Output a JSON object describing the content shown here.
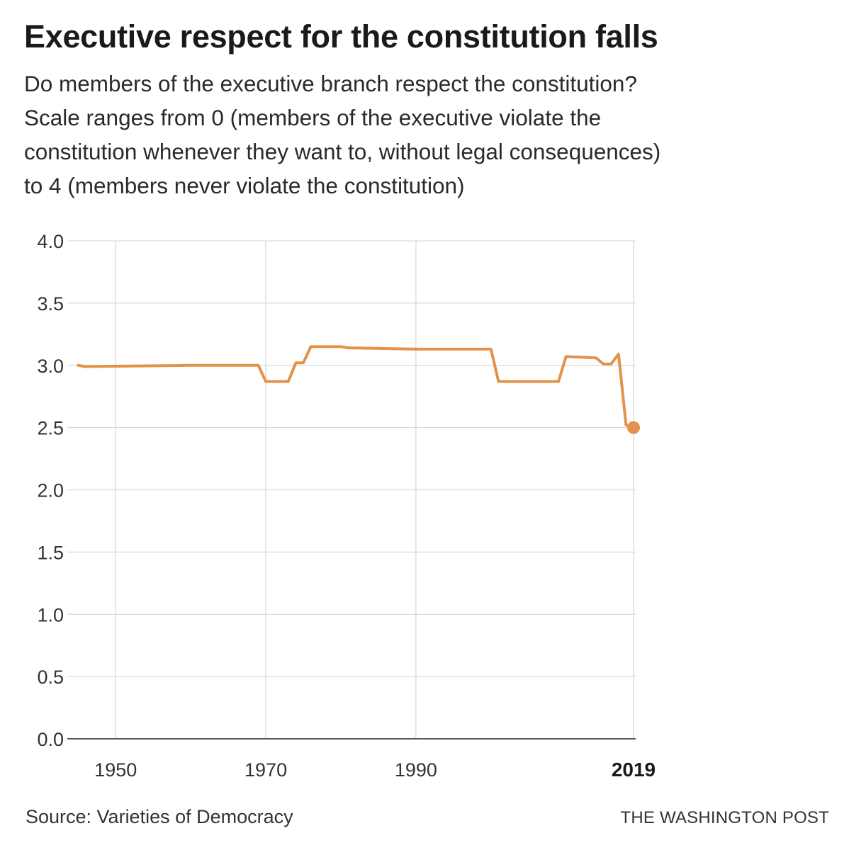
{
  "title": "Executive respect for the constitution falls",
  "subtitle_lines": [
    "Do members of the executive branch respect the constitution?",
    "Scale ranges from 0 (members of the executive violate the",
    "constitution whenever they want to, without legal consequences)",
    "to 4 (members never violate the constitution)"
  ],
  "source": "Source: Varieties of Democracy",
  "credit": "THE WASHINGTON POST",
  "colors": {
    "line": "#e2924b",
    "grid": "#d9d9d9",
    "axis": "#555555"
  },
  "chart_data": {
    "type": "line",
    "title": "Executive respect for the constitution falls",
    "xlabel": "",
    "ylabel": "",
    "xlim": [
      1944.5,
      2019
    ],
    "ylim": [
      0,
      4
    ],
    "yticks": [
      0,
      0.5,
      1.0,
      1.5,
      2.0,
      2.5,
      3.0,
      3.5,
      4.0
    ],
    "ytick_labels": [
      "0.0",
      "0.5",
      "1.0",
      "1.5",
      "2.0",
      "2.5",
      "3.0",
      "3.5",
      "4.0"
    ],
    "xticks": [
      1950,
      1970,
      1990,
      2019
    ],
    "xtick_labels": [
      "1950",
      "1970",
      "1990",
      "2019"
    ],
    "highlight_tick": "2019",
    "series": [
      {
        "name": "Executive respect for the constitution",
        "x": [
          1945,
          1946,
          1960,
          1969,
          1970,
          1973,
          1974,
          1975,
          1976,
          1980,
          1981,
          1990,
          2000,
          2001,
          2009,
          2010,
          2014,
          2015,
          2016,
          2017,
          2018,
          2019
        ],
        "y": [
          3.0,
          2.99,
          3.0,
          3.0,
          2.87,
          2.87,
          3.02,
          3.02,
          3.15,
          3.15,
          3.14,
          3.13,
          3.13,
          2.87,
          2.87,
          3.07,
          3.06,
          3.01,
          3.01,
          3.09,
          2.52,
          2.5
        ],
        "end_marker": true
      }
    ]
  }
}
